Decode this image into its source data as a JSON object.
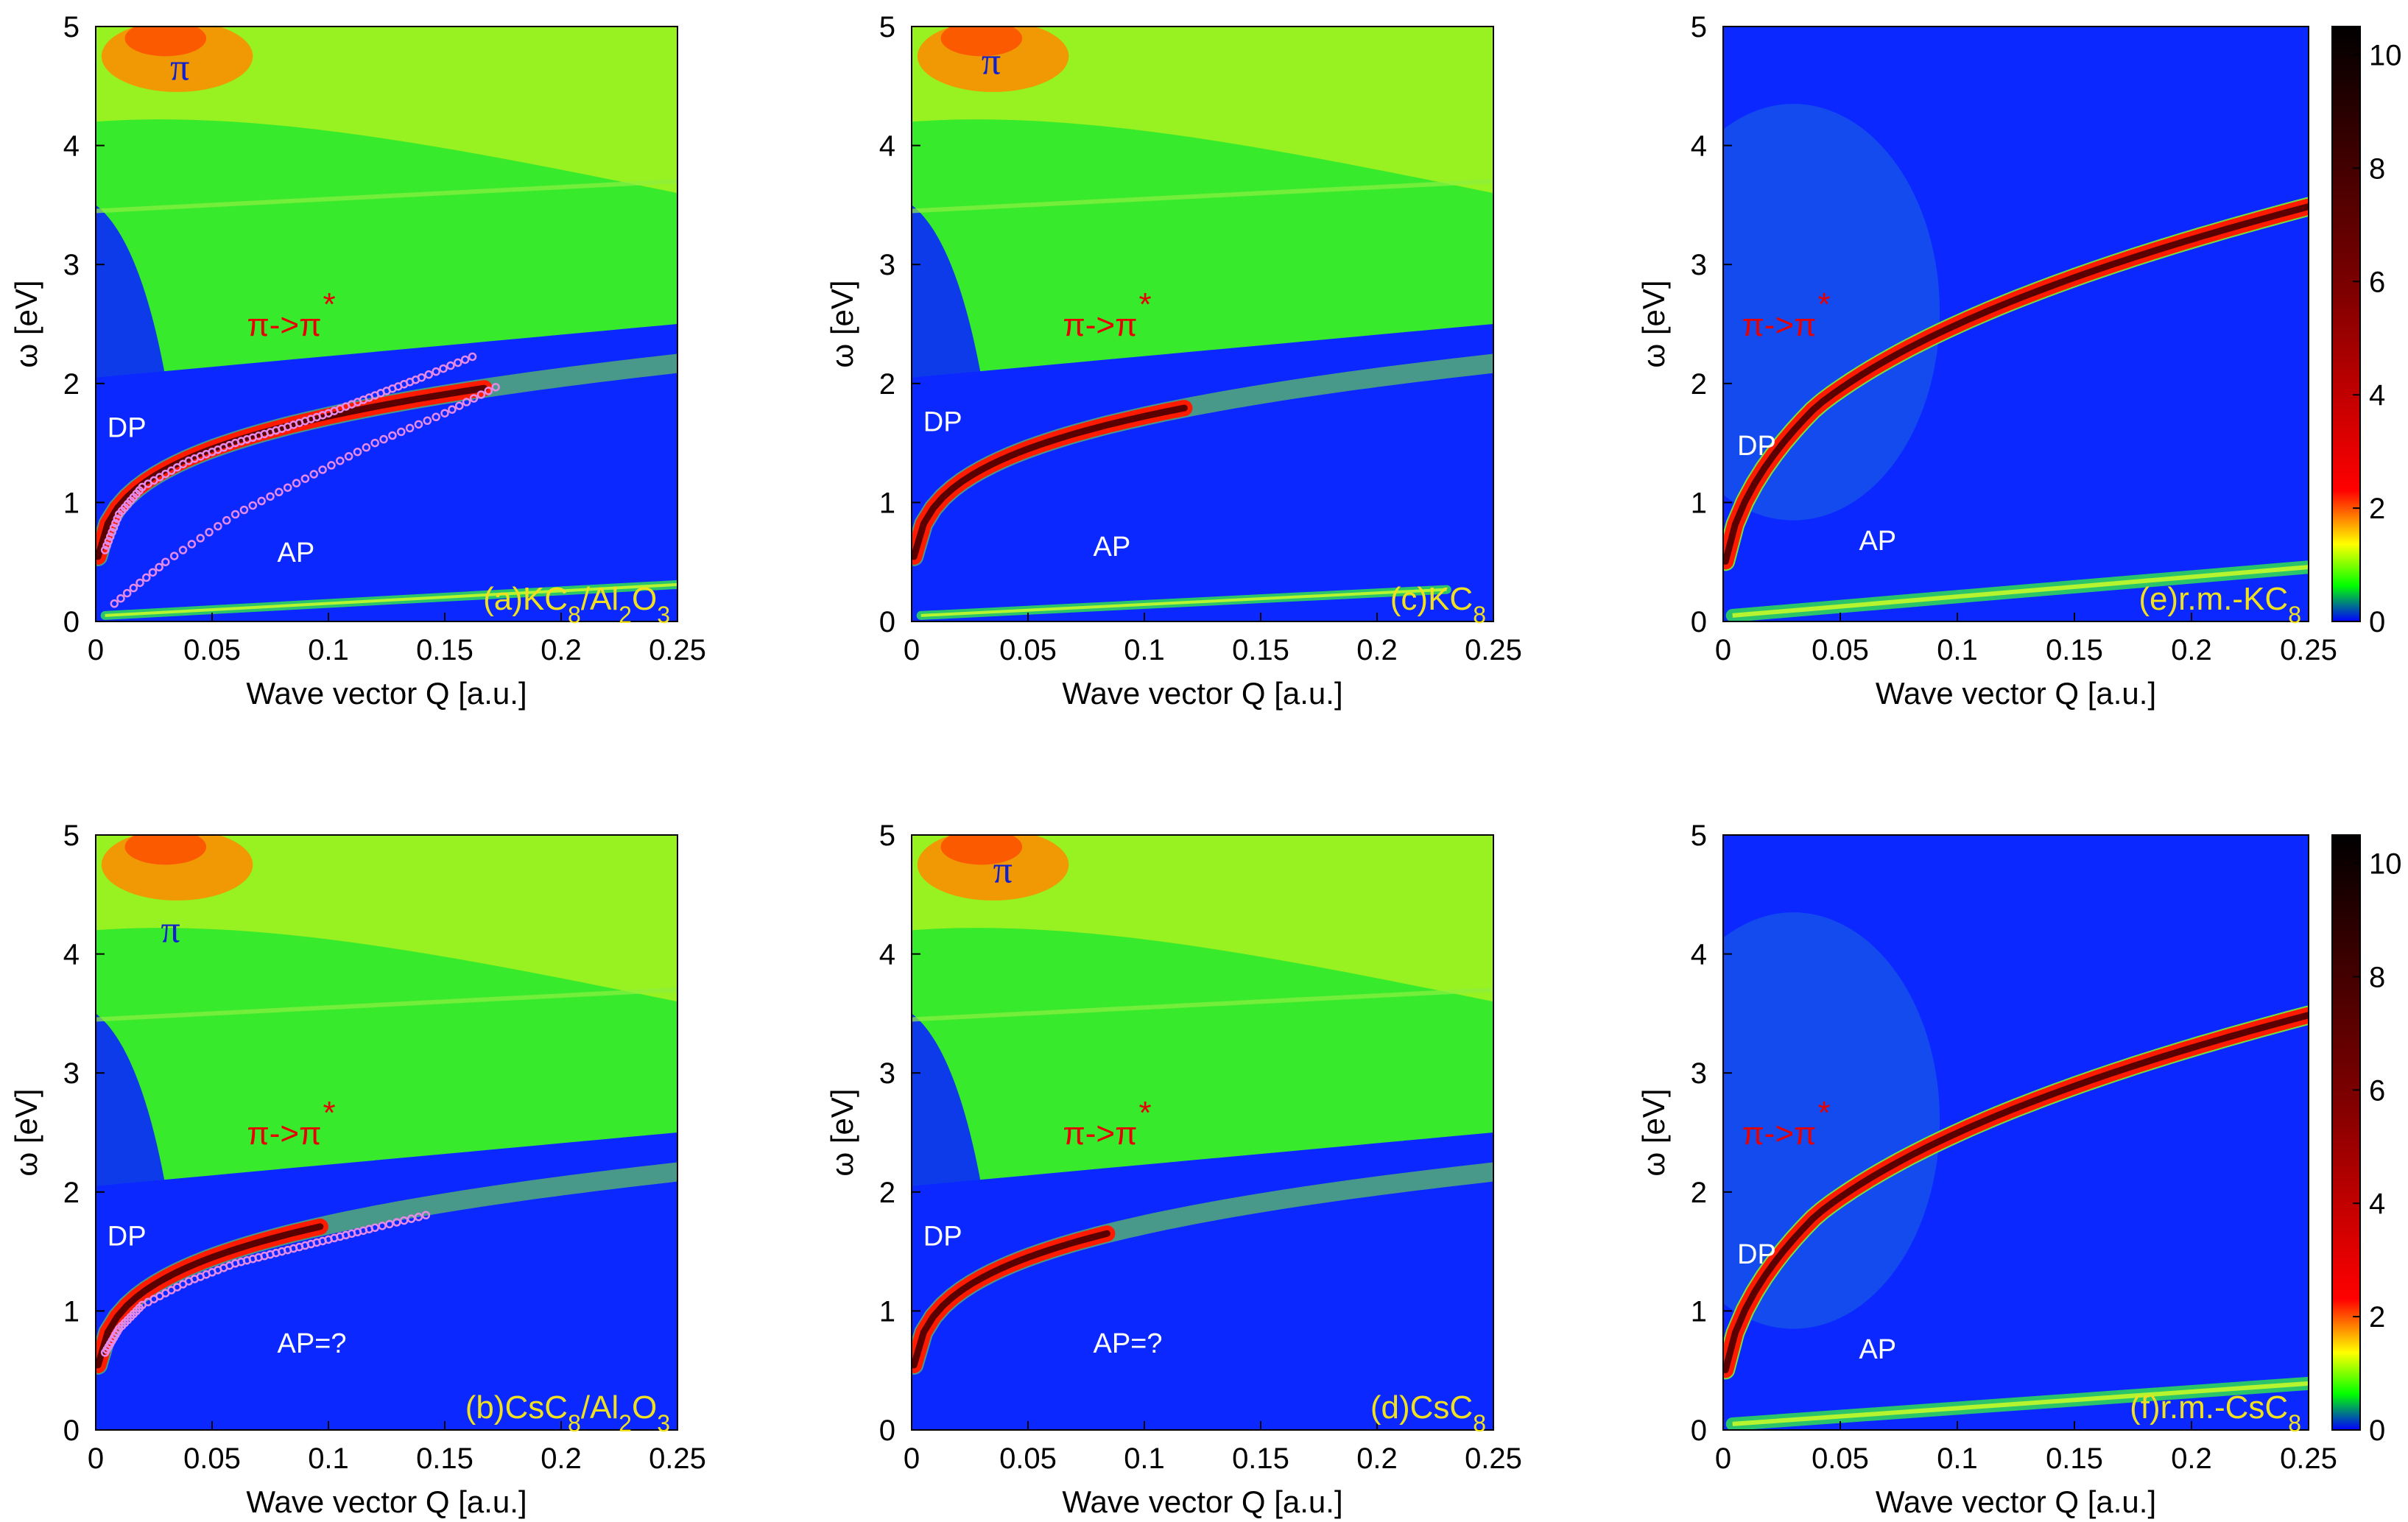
{
  "chart_data": [
    {
      "type": "heatmap",
      "id": "a",
      "panel_label": "(a)KC8/Al2O3",
      "label_parts": [
        {
          "t": "(a)KC"
        },
        {
          "t": "8",
          "sub": true
        },
        {
          "t": "/Al"
        },
        {
          "t": "2",
          "sub": true
        },
        {
          "t": "O"
        },
        {
          "t": "3",
          "sub": true
        }
      ],
      "xlabel": "Wave vector Q [a.u.]",
      "ylabel": "ω [eV]",
      "xlim": [
        0,
        0.25
      ],
      "ylim": [
        0,
        5
      ],
      "xticks": [
        "0",
        "0.05",
        "0.1",
        "0.15",
        "0.2",
        "0.25"
      ],
      "yticks": [
        "0",
        "1",
        "2",
        "3",
        "4",
        "5"
      ],
      "annotations": [
        {
          "text": "π",
          "style": "blue",
          "x": 0.032,
          "y": 4.55
        },
        {
          "text": "π->π",
          "star": true,
          "style": "red",
          "x": 0.065,
          "y": 2.4
        },
        {
          "text": "DP",
          "style": "white",
          "x": 0.005,
          "y": 1.55
        },
        {
          "text": "AP",
          "style": "white",
          "x": 0.078,
          "y": 0.5
        }
      ],
      "modes": {
        "dp_coef": 1.5,
        "ap_slope": 10.4,
        "dp_end": 0.17,
        "ap_end": 0.25
      },
      "dotted_series": [
        {
          "name": "DP dots",
          "x": [
            0.004,
            0.01,
            0.02,
            0.04,
            0.06,
            0.08,
            0.1,
            0.12,
            0.14,
            0.165
          ],
          "y": [
            0.6,
            0.9,
            1.13,
            1.35,
            1.5,
            1.62,
            1.75,
            1.9,
            2.05,
            2.25
          ]
        },
        {
          "name": "AP dots",
          "x": [
            0.008,
            0.03,
            0.06,
            0.09,
            0.12,
            0.15,
            0.175
          ],
          "y": [
            0.15,
            0.5,
            0.9,
            1.2,
            1.5,
            1.75,
            2.0
          ]
        }
      ]
    },
    {
      "type": "heatmap",
      "id": "c",
      "panel_label": "(c)KC8",
      "label_parts": [
        {
          "t": "(c)KC"
        },
        {
          "t": "8",
          "sub": true
        }
      ],
      "xlabel": "Wave vector Q [a.u.]",
      "ylabel": "ω [eV]",
      "xlim": [
        0,
        0.25
      ],
      "ylim": [
        0,
        5
      ],
      "xticks": [
        "0",
        "0.05",
        "0.1",
        "0.15",
        "0.2",
        "0.25"
      ],
      "yticks": [
        "0",
        "1",
        "2",
        "3",
        "4",
        "5"
      ],
      "annotations": [
        {
          "text": "π",
          "style": "blue",
          "x": 0.03,
          "y": 4.6
        },
        {
          "text": "π->π",
          "star": true,
          "style": "red",
          "x": 0.065,
          "y": 2.4
        },
        {
          "text": "DP",
          "style": "white",
          "x": 0.005,
          "y": 1.6
        },
        {
          "text": "AP",
          "style": "white",
          "x": 0.078,
          "y": 0.55
        }
      ],
      "modes": {
        "dp_coef": 1.6,
        "ap_slope": 9.5,
        "dp_end": 0.12,
        "ap_end": 0.23
      }
    },
    {
      "type": "heatmap",
      "id": "e",
      "panel_label": "(e)r.m.-KC8",
      "label_parts": [
        {
          "t": "(e)r.m.-KC"
        },
        {
          "t": "8",
          "sub": true
        }
      ],
      "xlabel": "Wave vector Q [a.u.]",
      "ylabel": "ω [eV]",
      "xlim": [
        0,
        0.25
      ],
      "ylim": [
        0,
        5
      ],
      "xticks": [
        "0",
        "0.05",
        "0.1",
        "0.15",
        "0.2",
        "0.25"
      ],
      "yticks": [
        "0",
        "1",
        "2",
        "3",
        "4",
        "5"
      ],
      "annotations": [
        {
          "text": "π->π",
          "star": true,
          "style": "red",
          "x": 0.008,
          "y": 2.4
        },
        {
          "text": "DP",
          "style": "white",
          "x": 0.006,
          "y": 1.4
        },
        {
          "text": "AP",
          "style": "white",
          "x": 0.058,
          "y": 0.6
        }
      ],
      "modes": {
        "dp_coef": 1.5,
        "ap_slope": 10.5,
        "dp_end": 0.25,
        "ap_end": 0.25,
        "rm": true
      },
      "colorbar": {
        "ticks": [
          "0",
          "2",
          "4",
          "6",
          "8",
          "10"
        ],
        "range": [
          0,
          10.5
        ]
      }
    },
    {
      "type": "heatmap",
      "id": "b",
      "panel_label": "(b)CsC8/Al2O3",
      "label_parts": [
        {
          "t": "(b)CsC"
        },
        {
          "t": "8",
          "sub": true
        },
        {
          "t": "/Al"
        },
        {
          "t": "2",
          "sub": true
        },
        {
          "t": "O"
        },
        {
          "t": "3",
          "sub": true
        }
      ],
      "xlabel": "Wave vector Q [a.u.]",
      "ylabel": "ω [eV]",
      "xlim": [
        0,
        0.25
      ],
      "ylim": [
        0,
        5
      ],
      "xticks": [
        "0",
        "0.05",
        "0.1",
        "0.15",
        "0.2",
        "0.25"
      ],
      "yticks": [
        "0",
        "1",
        "2",
        "3",
        "4",
        "5"
      ],
      "annotations": [
        {
          "text": "π",
          "style": "blue",
          "x": 0.028,
          "y": 4.1
        },
        {
          "text": "π->π",
          "star": true,
          "style": "red",
          "x": 0.065,
          "y": 2.4
        },
        {
          "text": "DP",
          "style": "white",
          "x": 0.005,
          "y": 1.55
        },
        {
          "text": "AP=?",
          "style": "white",
          "x": 0.078,
          "y": 0.65
        }
      ],
      "modes": {
        "dp_coef": 1.4,
        "ap_slope": 0,
        "dp_end": 0.1,
        "ap_end": 0
      },
      "dotted_series": [
        {
          "name": "DP dots",
          "x": [
            0.004,
            0.01,
            0.02,
            0.04,
            0.06,
            0.08,
            0.1,
            0.12,
            0.145
          ],
          "y": [
            0.65,
            0.85,
            1.05,
            1.25,
            1.4,
            1.5,
            1.6,
            1.7,
            1.82
          ]
        }
      ]
    },
    {
      "type": "heatmap",
      "id": "d",
      "panel_label": "(d)CsC8",
      "label_parts": [
        {
          "t": "(d)CsC"
        },
        {
          "t": "8",
          "sub": true
        }
      ],
      "xlabel": "Wave vector Q [a.u.]",
      "ylabel": "ω [eV]",
      "xlim": [
        0,
        0.25
      ],
      "ylim": [
        0,
        5
      ],
      "xticks": [
        "0",
        "0.05",
        "0.1",
        "0.15",
        "0.2",
        "0.25"
      ],
      "yticks": [
        "0",
        "1",
        "2",
        "3",
        "4",
        "5"
      ],
      "annotations": [
        {
          "text": "π",
          "style": "blue",
          "x": 0.035,
          "y": 4.6
        },
        {
          "text": "π->π",
          "star": true,
          "style": "red",
          "x": 0.065,
          "y": 2.4
        },
        {
          "text": "DP",
          "style": "white",
          "x": 0.005,
          "y": 1.55
        },
        {
          "text": "AP=?",
          "style": "white",
          "x": 0.078,
          "y": 0.65
        }
      ],
      "modes": {
        "dp_coef": 1.4,
        "ap_slope": 0,
        "dp_end": 0.085,
        "ap_end": 0
      }
    },
    {
      "type": "heatmap",
      "id": "f",
      "panel_label": "(f)r.m.-CsC8",
      "label_parts": [
        {
          "t": "(f)r.m.-CsC"
        },
        {
          "t": "8",
          "sub": true
        }
      ],
      "xlabel": "Wave vector Q [a.u.]",
      "ylabel": "ω [eV]",
      "xlim": [
        0,
        0.25
      ],
      "ylim": [
        0,
        5
      ],
      "xticks": [
        "0",
        "0.05",
        "0.1",
        "0.15",
        "0.2",
        "0.25"
      ],
      "yticks": [
        "0",
        "1",
        "2",
        "3",
        "4",
        "5"
      ],
      "annotations": [
        {
          "text": "π->π",
          "star": true,
          "style": "red",
          "x": 0.008,
          "y": 2.4
        },
        {
          "text": "DP",
          "style": "white",
          "x": 0.006,
          "y": 1.4
        },
        {
          "text": "AP",
          "style": "white",
          "x": 0.058,
          "y": 0.6
        }
      ],
      "modes": {
        "dp_coef": 1.3,
        "ap_slope": 8.8,
        "dp_end": 0.25,
        "ap_end": 0.25,
        "rm": true
      },
      "colorbar": {
        "ticks": [
          "0",
          "2",
          "4",
          "6",
          "8",
          "10"
        ],
        "range": [
          0,
          10.5
        ]
      }
    }
  ]
}
